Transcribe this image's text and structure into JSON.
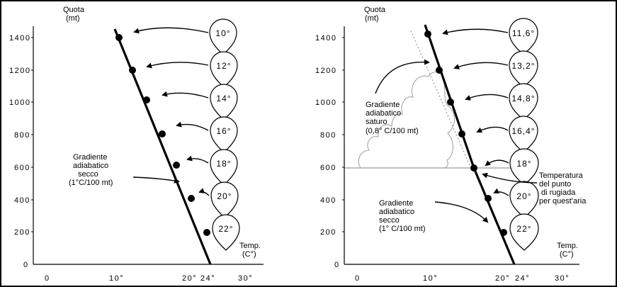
{
  "panels": [
    {
      "y_axis_title_line1": "Quota",
      "y_axis_title_line2": "(mt)",
      "x_axis_title_line1": "Temp.",
      "x_axis_title_line2": "(C°)",
      "y_ticks": [
        "1400",
        "1200",
        "1000",
        "800",
        "600",
        "400",
        "200",
        "0"
      ],
      "x_ticks": [
        "0",
        "10°",
        "20°",
        "24°",
        "30°"
      ],
      "drop_labels": [
        "10°",
        "12°",
        "14°",
        "16°",
        "18°",
        "20°",
        "22°"
      ],
      "annotations": {
        "dry": [
          "Gradiente",
          "adiabatico",
          "secco",
          "(1°C/100  mt)"
        ]
      },
      "profile": [
        {
          "altitude_m": 0,
          "temp_c": 24
        },
        {
          "altitude_m": 200,
          "temp_c": 22
        },
        {
          "altitude_m": 400,
          "temp_c": 20
        },
        {
          "altitude_m": 600,
          "temp_c": 18
        },
        {
          "altitude_m": 800,
          "temp_c": 16
        },
        {
          "altitude_m": 1000,
          "temp_c": 14
        },
        {
          "altitude_m": 1200,
          "temp_c": 12
        },
        {
          "altitude_m": 1400,
          "temp_c": 10
        }
      ]
    },
    {
      "y_axis_title_line1": "Quota",
      "y_axis_title_line2": "(mt)",
      "x_axis_title_line1": "Temp.",
      "x_axis_title_line2": "(C°)",
      "y_ticks": [
        "1400",
        "1200",
        "1000",
        "800",
        "600",
        "400",
        "200",
        "0"
      ],
      "x_ticks": [
        "0",
        "10°",
        "20°",
        "24°",
        "30°"
      ],
      "drop_labels": [
        "11,6°",
        "13,2°",
        "14,8°",
        "16,4°",
        "18°",
        "20°",
        "22°"
      ],
      "annotations": {
        "saturated": [
          "Gradiente",
          "adiabatico",
          "saturo",
          "(0,8° C/100  mt)"
        ],
        "dew_point": [
          "Temperatura",
          "del punto",
          "di rugiada",
          "per quest'aria"
        ],
        "dry": [
          "Gradiente",
          "adiabatico",
          "secco",
          "(1° C/100  mt)"
        ]
      },
      "profile": [
        {
          "altitude_m": 0,
          "temp_c": 24
        },
        {
          "altitude_m": 200,
          "temp_c": 22
        },
        {
          "altitude_m": 400,
          "temp_c": 20
        },
        {
          "altitude_m": 600,
          "temp_c": 18
        },
        {
          "altitude_m": 800,
          "temp_c": 16.4
        },
        {
          "altitude_m": 1000,
          "temp_c": 14.8
        },
        {
          "altitude_m": 1200,
          "temp_c": 13.2
        },
        {
          "altitude_m": 1400,
          "temp_c": 11.6
        }
      ]
    }
  ]
}
